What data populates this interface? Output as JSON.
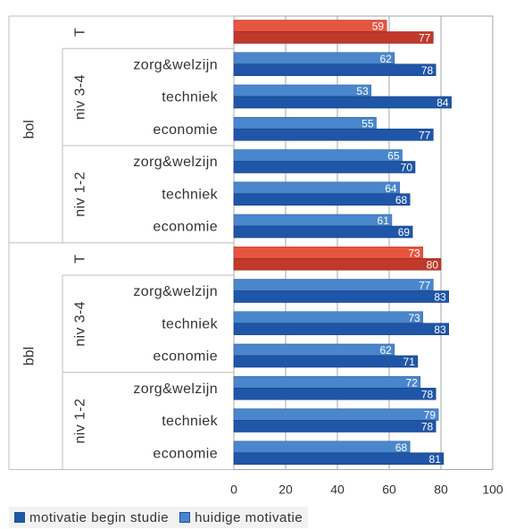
{
  "chart_data": {
    "type": "bar",
    "orientation": "horizontal",
    "xlim": [
      0,
      100
    ],
    "xticks": [
      "0",
      "20",
      "40",
      "60",
      "80",
      "100"
    ],
    "grid": true,
    "legend_position": "bottom-left",
    "groups": [
      {
        "name": "bol",
        "subgroups": [
          {
            "name": "",
            "categories": [
              {
                "label": "T",
                "huidig": 59,
                "begin": 77,
                "total": true
              }
            ]
          },
          {
            "name": "niv 3-4",
            "categories": [
              {
                "label": "zorg&welzijn",
                "huidig": 62,
                "begin": 78
              },
              {
                "label": "techniek",
                "huidig": 53,
                "begin": 84
              },
              {
                "label": "economie",
                "huidig": 55,
                "begin": 77
              }
            ]
          },
          {
            "name": "niv 1-2",
            "categories": [
              {
                "label": "zorg&welzijn",
                "huidig": 65,
                "begin": 70
              },
              {
                "label": "techniek",
                "huidig": 64,
                "begin": 68
              },
              {
                "label": "economie",
                "huidig": 61,
                "begin": 69
              }
            ]
          }
        ]
      },
      {
        "name": "bbl",
        "subgroups": [
          {
            "name": "",
            "categories": [
              {
                "label": "T",
                "huidig": 73,
                "begin": 80,
                "total": true
              }
            ]
          },
          {
            "name": "niv 3-4",
            "categories": [
              {
                "label": "zorg&welzijn",
                "huidig": 77,
                "begin": 83
              },
              {
                "label": "techniek",
                "huidig": 73,
                "begin": 83
              },
              {
                "label": "economie",
                "huidig": 62,
                "begin": 71
              }
            ]
          },
          {
            "name": "niv 1-2",
            "categories": [
              {
                "label": "zorg&welzijn",
                "huidig": 72,
                "begin": 78
              },
              {
                "label": "techniek",
                "huidig": 79,
                "begin": 78
              },
              {
                "label": "economie",
                "huidig": 68,
                "begin": 81
              }
            ]
          }
        ]
      }
    ],
    "series": [
      {
        "key": "begin",
        "name": "motivatie begin studie"
      },
      {
        "key": "huidig",
        "name": "huidige motivatie"
      }
    ]
  },
  "colors": {
    "begin": "#1f56a8",
    "huidig": "#4a86cc",
    "total_begin": "#c0392b",
    "total_huidig": "#e8553f",
    "grid": "#a6a6a6",
    "divider": "#bfbfbf"
  }
}
